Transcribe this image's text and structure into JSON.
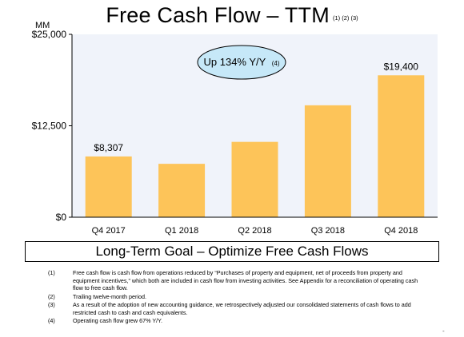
{
  "header": {
    "title": "Free Cash Flow – TTM",
    "title_refs": "(1) (2) (3)"
  },
  "chart_data": {
    "type": "bar",
    "unit_label": "MM",
    "categories": [
      "Q4 2017",
      "Q1 2018",
      "Q2 2018",
      "Q3 2018",
      "Q4 2018"
    ],
    "values": [
      8307,
      7300,
      10300,
      15300,
      19400
    ],
    "data_labels": [
      "$8,307",
      "",
      "",
      "",
      "$19,400"
    ],
    "ylim": [
      0,
      25000
    ],
    "y_ticks": [
      0,
      12500,
      25000
    ],
    "y_tick_labels": [
      "$0",
      "$12,500",
      "$25,000"
    ],
    "grid": false,
    "bar_color": "#FDC459",
    "plot_background": "#F0F3FA",
    "annotation": {
      "text": "Up 134% Y/Y",
      "ref": "(4)",
      "fill": "#C6E8F8"
    }
  },
  "goal_box": {
    "text": "Long-Term Goal – Optimize Free Cash Flows"
  },
  "footnotes": [
    {
      "num": "(1)",
      "text": "Free cash flow is cash flow from operations reduced by “Purchases of property and equipment, net of proceeds from property and equipment incentives,” which both are included in cash flow from investing activities. See Appendix for a reconciliation of operating cash flow to free cash flow."
    },
    {
      "num": "(2)",
      "text": "Trailing twelve-month period."
    },
    {
      "num": "(3)",
      "text": "As a result of the adoption of new accounting guidance, we retrospectively adjusted our consolidated statements of cash flows to add restricted cash to cash and cash equivalents."
    },
    {
      "num": "(4)",
      "text": "Operating cash flow grew 67% Y/Y."
    }
  ],
  "page_marker": "-"
}
